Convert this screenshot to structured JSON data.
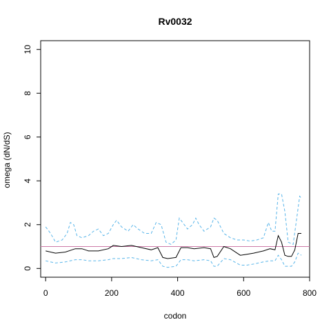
{
  "chart_data": {
    "type": "line",
    "title": "Rv0032",
    "xlabel": "codon",
    "ylabel": "omega (dN/dS)",
    "xlim": [
      -15,
      800
    ],
    "ylim": [
      -0.4,
      10.4
    ],
    "x_ticks": [
      0,
      200,
      400,
      600,
      800
    ],
    "y_ticks": [
      0,
      2,
      4,
      6,
      8,
      10
    ],
    "grid": false,
    "legend": "none",
    "reference_line": {
      "y": 1,
      "color": "#cc79a7"
    },
    "series": [
      {
        "role": "estimate",
        "color": "#000000",
        "style": "solid",
        "x": [
          0,
          30,
          60,
          90,
          110,
          130,
          160,
          190,
          205,
          230,
          260,
          290,
          320,
          340,
          355,
          370,
          395,
          410,
          430,
          450,
          480,
          500,
          510,
          520,
          540,
          560,
          590,
          610,
          630,
          660,
          680,
          695,
          705,
          715,
          725,
          735,
          745,
          755,
          765,
          775
        ],
        "y": [
          0.8,
          0.7,
          0.75,
          0.9,
          0.9,
          0.8,
          0.8,
          0.9,
          1.05,
          1.0,
          1.05,
          0.95,
          0.85,
          0.95,
          0.5,
          0.45,
          0.5,
          0.95,
          0.95,
          0.9,
          0.95,
          0.9,
          0.5,
          0.55,
          1.0,
          0.9,
          0.6,
          0.65,
          0.7,
          0.8,
          0.9,
          0.85,
          1.5,
          1.2,
          0.6,
          0.55,
          0.55,
          0.85,
          1.6,
          1.6
        ]
      },
      {
        "role": "upper bound",
        "color": "#56b4e9",
        "style": "dashed",
        "x": [
          0,
          15,
          30,
          50,
          65,
          75,
          85,
          95,
          110,
          130,
          145,
          160,
          175,
          190,
          205,
          215,
          230,
          250,
          265,
          280,
          300,
          320,
          335,
          350,
          365,
          380,
          395,
          405,
          415,
          430,
          445,
          455,
          465,
          480,
          500,
          510,
          520,
          540,
          560,
          580,
          600,
          620,
          640,
          660,
          675,
          685,
          695,
          705,
          715,
          725,
          735,
          750,
          760,
          770,
          775
        ],
        "y": [
          1.9,
          1.6,
          1.2,
          1.3,
          1.6,
          2.1,
          2.0,
          1.5,
          1.4,
          1.5,
          1.7,
          1.8,
          1.5,
          1.6,
          2.0,
          2.2,
          1.9,
          1.7,
          2.0,
          1.8,
          1.6,
          1.6,
          2.1,
          2.0,
          1.2,
          1.1,
          1.3,
          2.3,
          2.1,
          1.8,
          2.0,
          2.3,
          2.0,
          1.7,
          1.9,
          2.3,
          2.2,
          1.6,
          1.4,
          1.3,
          1.3,
          1.25,
          1.3,
          1.4,
          2.1,
          1.7,
          1.7,
          3.4,
          3.4,
          2.6,
          1.2,
          1.1,
          2.2,
          3.3,
          3.2
        ]
      },
      {
        "role": "lower bound",
        "color": "#56b4e9",
        "style": "dashed",
        "x": [
          0,
          30,
          60,
          90,
          110,
          130,
          160,
          190,
          205,
          230,
          260,
          290,
          320,
          340,
          355,
          370,
          395,
          410,
          430,
          450,
          480,
          500,
          510,
          520,
          540,
          560,
          590,
          610,
          630,
          660,
          680,
          695,
          705,
          715,
          725,
          735,
          745,
          755,
          765,
          775
        ],
        "y": [
          0.35,
          0.25,
          0.3,
          0.4,
          0.4,
          0.35,
          0.35,
          0.4,
          0.45,
          0.45,
          0.5,
          0.4,
          0.35,
          0.4,
          0.1,
          0.05,
          0.1,
          0.4,
          0.4,
          0.35,
          0.4,
          0.35,
          0.1,
          0.1,
          0.45,
          0.4,
          0.15,
          0.15,
          0.2,
          0.3,
          0.35,
          0.35,
          0.6,
          0.4,
          0.1,
          0.1,
          0.1,
          0.3,
          0.7,
          0.6
        ]
      }
    ]
  }
}
